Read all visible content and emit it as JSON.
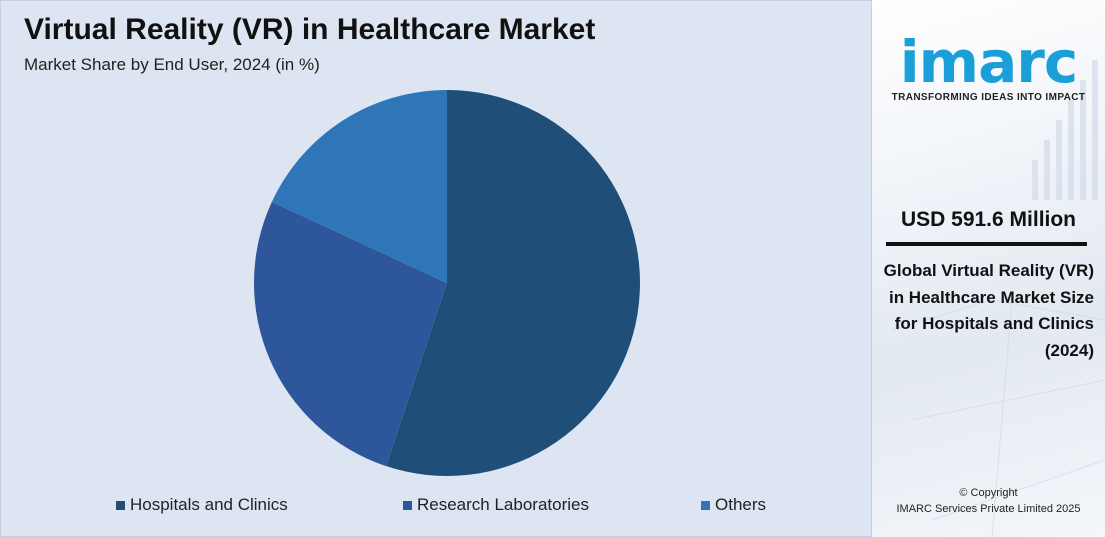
{
  "chart_data": {
    "type": "pie",
    "title": "Virtual Reality (VR) in Healthcare Market",
    "subtitle": "Market Share by End User, 2024 (in %)",
    "categories": [
      "Hospitals and Clinics",
      "Research Laboratories",
      "Others"
    ],
    "values": [
      55.1,
      26.8,
      18.1
    ],
    "colors": [
      "#1f4e79",
      "#2e569a",
      "#2f76b8"
    ],
    "legend_position": "bottom"
  },
  "side_panel": {
    "logo_text": "imarc",
    "tagline": "TRANSFORMING IDEAS INTO IMPACT",
    "market_value": "USD 591.6 Million",
    "description": "Global Virtual Reality (VR) in Healthcare Market Size for Hospitals and Clinics (2024)",
    "copyright_line1": "© Copyright",
    "copyright_line2": "IMARC Services Private Limited 2025",
    "brand_color": "#1a9fd9"
  }
}
